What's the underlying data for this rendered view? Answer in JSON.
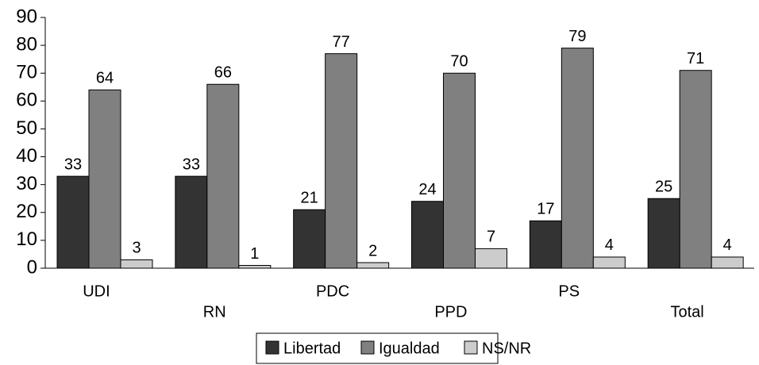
{
  "chart_data": {
    "type": "bar",
    "categories": [
      "UDI",
      "RN",
      "PDC",
      "PPD",
      "PS",
      "Total"
    ],
    "series": [
      {
        "name": "Libertad",
        "color": "#333333",
        "values": [
          33,
          33,
          21,
          24,
          17,
          25
        ]
      },
      {
        "name": "Igualdad",
        "color": "#808080",
        "values": [
          64,
          66,
          77,
          70,
          79,
          71
        ]
      },
      {
        "name": "NS/NR",
        "color": "#cccccc",
        "values": [
          3,
          1,
          2,
          7,
          4,
          4
        ]
      }
    ],
    "ylim": [
      0,
      90
    ],
    "yticks": [
      0,
      10,
      20,
      30,
      40,
      50,
      60,
      70,
      80,
      90
    ],
    "legend": "bottom"
  }
}
